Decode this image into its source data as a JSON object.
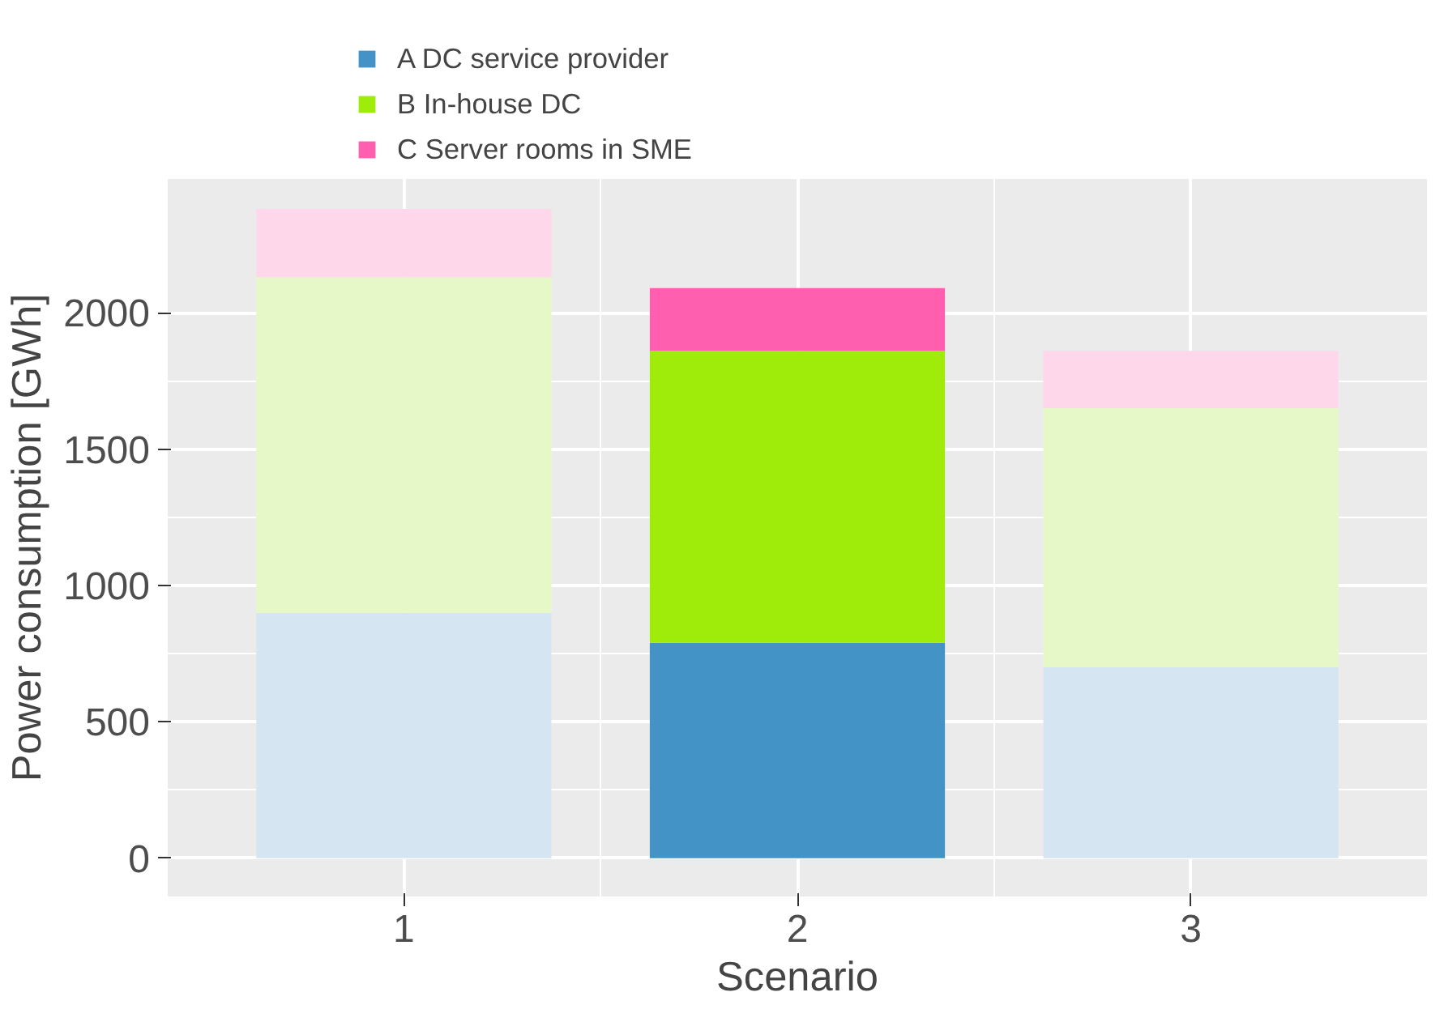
{
  "chart_data": {
    "type": "bar",
    "stacked": true,
    "xlabel": "Scenario",
    "ylabel": "Power consumption [GWh]",
    "categories": [
      "1",
      "2",
      "3"
    ],
    "series": [
      {
        "name": "A DC service provider",
        "color": "#4393c6",
        "colors": [
          "#d6e5f2",
          "#4393c6",
          "#d6e5f2"
        ],
        "values": [
          900,
          790,
          700
        ]
      },
      {
        "name": "B In-house DC",
        "color": "#9feb0a",
        "colors": [
          "#e6f8c8",
          "#9feb0a",
          "#e6f8c8"
        ],
        "values": [
          1230,
          1070,
          950
        ]
      },
      {
        "name": "C Server rooms in SME",
        "color": "#ff5fae",
        "colors": [
          "#ffd7ea",
          "#ff5fae",
          "#ffd7ea"
        ],
        "values": [
          250,
          230,
          210
        ]
      }
    ],
    "ylim": [
      -140,
      2490
    ],
    "yticks": [
      0,
      500,
      1000,
      1500,
      2000
    ],
    "grid": true,
    "legend": "top left"
  }
}
